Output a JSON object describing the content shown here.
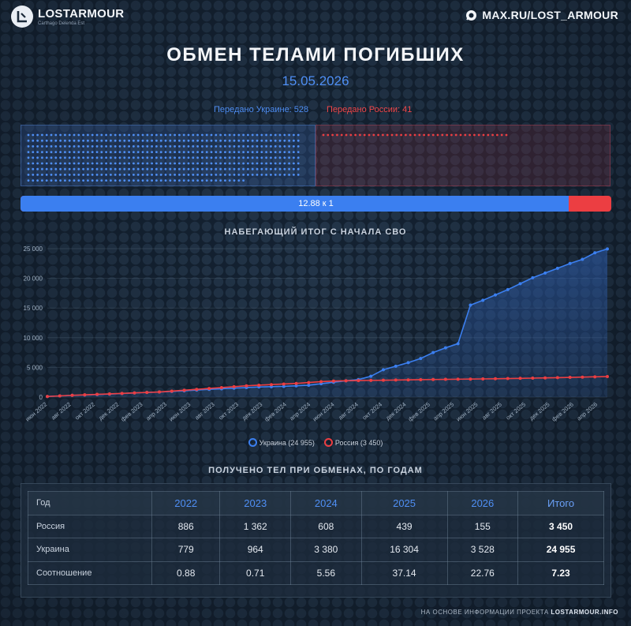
{
  "header": {
    "brand": "LOSTARMOUR",
    "tagline": "Carthago Delenda Est",
    "channel": "MAX.RU/LOST_ARMOUR",
    "brand_icon": "lostarmour-logo-icon",
    "channel_icon": "max-messenger-icon"
  },
  "title": "ОБМЕН ТЕЛАМИ ПОГИБШИХ",
  "date": "15.05.2026",
  "transfer": {
    "ukraine_label": "Передано Украине: 528",
    "russia_label": "Передано России: 41",
    "ukraine": 528,
    "russia": 41,
    "ratio_label": "12.88 к 1"
  },
  "colors": {
    "ukraine": "#3b7ff0",
    "russia": "#ec3e42",
    "background": "#142232"
  },
  "chart_title": "НАБЕГАЮЩИЙ ИТОГ С НАЧАЛА СВО",
  "chart_data": {
    "type": "area",
    "title": "НАБЕГАЮЩИЙ ИТОГ С НАЧАЛА СВО",
    "x_tick_labels": [
      "июн 2022",
      "авг 2022",
      "окт 2022",
      "дек 2022",
      "фев 2023",
      "апр 2023",
      "июн 2023",
      "авг 2023",
      "окт 2023",
      "дек 2023",
      "фев 2024",
      "апр 2024",
      "июн 2024",
      "авг 2024",
      "окт 2024",
      "дек 2024",
      "фев 2025",
      "апр 2025",
      "июн 2025",
      "авг 2025",
      "окт 2025",
      "дек 2025",
      "фев 2026",
      "апр 2026"
    ],
    "yticks": [
      0,
      5000,
      10000,
      15000,
      20000,
      25000
    ],
    "ytick_labels": [
      "0",
      "5 000",
      "10 000",
      "15 000",
      "20 000",
      "25 000"
    ],
    "ylim": [
      0,
      25000
    ],
    "grid": true,
    "legend": "bottom",
    "series": [
      {
        "name": "Украина (24 955)",
        "color": "#3b7ff0",
        "values": [
          100,
          200,
          300,
          350,
          420,
          500,
          600,
          700,
          780,
          850,
          950,
          1050,
          1180,
          1300,
          1400,
          1500,
          1600,
          1700,
          1750,
          1800,
          1900,
          2000,
          2250,
          2500,
          2750,
          2950,
          3500,
          4600,
          5200,
          5800,
          6500,
          7500,
          8300,
          9000,
          15500,
          16300,
          17200,
          18100,
          19100,
          20100,
          20900,
          21700,
          22500,
          23200,
          24300,
          24955
        ]
      },
      {
        "name": "Россия (3 450)",
        "color": "#ec3e42",
        "values": [
          100,
          200,
          300,
          380,
          460,
          540,
          620,
          700,
          780,
          860,
          1000,
          1150,
          1300,
          1450,
          1600,
          1750,
          1900,
          2000,
          2100,
          2200,
          2300,
          2450,
          2600,
          2700,
          2750,
          2780,
          2810,
          2840,
          2870,
          2900,
          2930,
          2960,
          2990,
          3010,
          3030,
          3060,
          3090,
          3120,
          3150,
          3190,
          3230,
          3270,
          3320,
          3360,
          3410,
          3450
        ]
      }
    ]
  },
  "legend_bottom": {
    "ukraine": "Украина (24 955)",
    "russia": "Россия (3 450)"
  },
  "table_title": "ПОЛУЧЕНО ТЕЛ ПРИ ОБМЕНАХ, ПО ГОДАМ",
  "table": {
    "headers": [
      "Год",
      "2022",
      "2023",
      "2024",
      "2025",
      "2026",
      "Итого"
    ],
    "rows": [
      [
        "Россия",
        "886",
        "1 362",
        "608",
        "439",
        "155",
        "3 450"
      ],
      [
        "Украина",
        "779",
        "964",
        "3 380",
        "16 304",
        "3 528",
        "24 955"
      ],
      [
        "Соотношение",
        "0.88",
        "0.71",
        "5.56",
        "37.14",
        "22.76",
        "7.23"
      ]
    ]
  },
  "footer": {
    "prefix": "НА ОСНОВЕ ИНФОРМАЦИИ ПРОЕКТА",
    "site": "LOSTARMOUR.INFO"
  }
}
